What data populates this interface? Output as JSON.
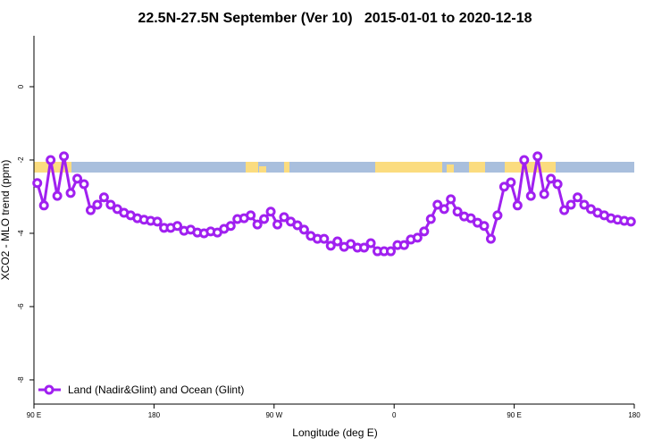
{
  "chart_data": {
    "type": "line",
    "title": "22.5N-27.5N September (Ver 10)   2015-01-01 to 2020-12-18",
    "x_label": "Longitude (deg E)",
    "y_label": "XCO2 - MLO trend (ppm)",
    "x": [
      92.5,
      97.5,
      102.5,
      107.5,
      112.5,
      117.5,
      122.5,
      127.5,
      132.5,
      137.5,
      142.5,
      147.5,
      152.5,
      157.5,
      162.5,
      167.5,
      172.5,
      177.5,
      182.5,
      187.5,
      192.5,
      197.5,
      202.5,
      207.5,
      212.5,
      217.5,
      222.5,
      227.5,
      232.5,
      237.5,
      242.5,
      247.5,
      252.5,
      257.5,
      262.5,
      267.5,
      272.5,
      277.5,
      282.5,
      287.5,
      292.5,
      297.5,
      302.5,
      307.5,
      312.5,
      317.5,
      322.5,
      327.5,
      332.5,
      337.5,
      342.5,
      347.5,
      352.5,
      357.5,
      362.5,
      367.5,
      372.5,
      377.5,
      382.5,
      387.5,
      392.5,
      397.5,
      402.5,
      407.5,
      412.5,
      417.5,
      422.5,
      427.5,
      432.5,
      437.5,
      442.5,
      447.5,
      452.5,
      457.5,
      462.5,
      467.5,
      472.5,
      477.5,
      482.5,
      487.5,
      492.5,
      497.5,
      502.5,
      507.5,
      512.5,
      517.5,
      522.5,
      527.5,
      532.5,
      537.5
    ],
    "series": [
      {
        "name": "Land (Nadir&Glint) and Ocean (Glint)",
        "color": "#a020f0",
        "values": [
          -2.63,
          -3.24,
          -2.0,
          -2.98,
          -1.9,
          -2.9,
          -2.51,
          -2.66,
          -3.37,
          -3.22,
          -3.02,
          -3.22,
          -3.34,
          -3.44,
          -3.51,
          -3.59,
          -3.63,
          -3.66,
          -3.68,
          -3.85,
          -3.85,
          -3.8,
          -3.93,
          -3.9,
          -3.98,
          -4.0,
          -3.95,
          -3.98,
          -3.88,
          -3.8,
          -3.61,
          -3.59,
          -3.51,
          -3.76,
          -3.61,
          -3.41,
          -3.76,
          -3.56,
          -3.68,
          -3.78,
          -3.9,
          -4.07,
          -4.15,
          -4.15,
          -4.34,
          -4.22,
          -4.37,
          -4.29,
          -4.39,
          -4.39,
          -4.27,
          -4.49,
          -4.49,
          -4.49,
          -4.32,
          -4.32,
          -4.17,
          -4.12,
          -3.95,
          -3.61,
          -3.22,
          -3.34,
          -3.07,
          -3.41,
          -3.54,
          -3.59,
          -3.71,
          -3.8,
          -4.15,
          -3.51,
          -2.73,
          -2.61,
          -3.24,
          -2.0,
          -2.98,
          -1.9,
          -2.93,
          -2.51,
          -2.66,
          -3.37,
          -3.22,
          -3.02,
          -3.22,
          -3.34,
          -3.44,
          -3.51,
          -3.59,
          -3.63,
          -3.66,
          -3.68
        ]
      }
    ],
    "xlim": [
      90,
      540
    ],
    "xticks": [
      {
        "value": 90,
        "label": "90 E"
      },
      180,
      {
        "value": 270,
        "label": "90 W"
      },
      {
        "value": 360,
        "label": "0"
      },
      {
        "value": 450,
        "label": "90 E"
      },
      {
        "value": 540,
        "label": "180"
      }
    ],
    "ylim": [
      -8.66,
      1.39
    ],
    "yticks": [
      0,
      -2,
      -4,
      -6,
      -8
    ],
    "legend": "bottom-left"
  }
}
